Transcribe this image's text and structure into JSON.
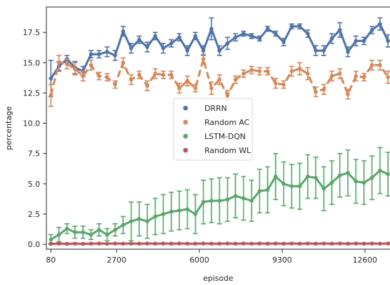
{
  "chart_data": {
    "type": "line",
    "xlabel": "episode",
    "ylabel": "percentage",
    "x_ticks": [
      80,
      2700,
      6000,
      9300,
      12600
    ],
    "y_ticks": [
      0.0,
      2.5,
      5.0,
      7.5,
      10.0,
      12.5,
      15.0,
      17.5
    ],
    "xlim": [
      -100,
      13600
    ],
    "ylim": [
      -0.4,
      19.6
    ],
    "grid": false,
    "legend_position": "center",
    "x": [
      80,
      400,
      720,
      1040,
      1360,
      1680,
      2000,
      2320,
      2640,
      2960,
      3280,
      3600,
      3920,
      4240,
      4560,
      4880,
      5200,
      5520,
      5840,
      6160,
      6480,
      6800,
      7120,
      7440,
      7760,
      8080,
      8400,
      8720,
      9040,
      9360,
      9680,
      10000,
      10320,
      10640,
      10960,
      11280,
      11600,
      11920,
      12240,
      12560,
      12880,
      13200,
      13520
    ],
    "series": [
      {
        "name": "DRRN",
        "color": "#4c72b0",
        "linestyle": "solid",
        "values": [
          13.7,
          14.7,
          15.3,
          14.6,
          14.3,
          15.7,
          15.7,
          15.9,
          15.6,
          17.6,
          16.2,
          16.9,
          16.3,
          17.2,
          16.2,
          16.6,
          17.1,
          16.0,
          17.2,
          16.0,
          17.8,
          16.0,
          16.6,
          17.1,
          17.4,
          17.2,
          17.0,
          17.8,
          17.4,
          16.7,
          18.0,
          18.0,
          17.4,
          16.0,
          16.0,
          17.0,
          17.7,
          15.9,
          16.8,
          16.8,
          17.7,
          18.2,
          16.8
        ],
        "err": [
          1.5,
          0.4,
          0.3,
          0.5,
          0.4,
          0.3,
          0.3,
          0.4,
          0.4,
          0.4,
          0.4,
          0.3,
          0.4,
          0.3,
          0.4,
          0.3,
          0.3,
          0.4,
          0.3,
          0.4,
          0.9,
          0.4,
          0.5,
          0.3,
          0.2,
          0.2,
          0.2,
          0.2,
          0.2,
          0.3,
          0.2,
          0.2,
          0.3,
          0.4,
          0.4,
          0.4,
          0.6,
          0.4,
          0.4,
          0.3,
          0.3,
          0.5,
          0.5
        ]
      },
      {
        "name": "Random AC",
        "color": "#dd8452",
        "linestyle": "dashed",
        "values": [
          12.3,
          15.0,
          14.9,
          14.5,
          13.9,
          14.8,
          13.9,
          13.8,
          13.2,
          15.0,
          13.6,
          14.0,
          13.1,
          14.1,
          14.0,
          14.0,
          12.9,
          13.5,
          12.9,
          15.3,
          12.9,
          13.6,
          12.3,
          13.6,
          14.1,
          14.4,
          14.3,
          14.3,
          13.3,
          13.2,
          14.3,
          14.5,
          14.1,
          12.6,
          12.8,
          13.9,
          14.1,
          12.4,
          13.9,
          13.8,
          14.8,
          14.8,
          13.8
        ],
        "err": [
          0.9,
          0.6,
          0.4,
          0.5,
          0.4,
          0.4,
          0.3,
          0.3,
          0.3,
          0.4,
          0.4,
          0.3,
          0.4,
          0.4,
          0.3,
          0.3,
          0.4,
          0.4,
          0.3,
          0.4,
          0.5,
          0.4,
          0.4,
          0.3,
          0.3,
          0.3,
          0.3,
          0.3,
          0.4,
          0.3,
          0.4,
          0.5,
          0.5,
          0.4,
          0.4,
          0.4,
          0.4,
          0.4,
          0.4,
          0.3,
          0.4,
          0.4,
          0.5
        ]
      },
      {
        "name": "LSTM-DQN",
        "color": "#55a868",
        "linestyle": "solid",
        "values": [
          0.4,
          0.8,
          1.3,
          1.0,
          1.0,
          0.8,
          1.2,
          0.8,
          1.2,
          1.6,
          1.9,
          2.1,
          1.9,
          2.3,
          2.5,
          2.7,
          2.8,
          2.9,
          2.5,
          3.5,
          3.6,
          3.6,
          3.7,
          4.0,
          3.8,
          3.6,
          4.4,
          4.5,
          5.6,
          5.0,
          4.8,
          4.8,
          5.6,
          5.5,
          4.6,
          5.1,
          5.7,
          5.9,
          5.2,
          5.1,
          5.5,
          6.1,
          5.8
        ],
        "err": [
          0.4,
          0.6,
          0.4,
          0.5,
          0.5,
          0.4,
          0.5,
          0.5,
          0.5,
          0.7,
          1.6,
          1.4,
          1.4,
          1.5,
          1.6,
          1.6,
          1.6,
          1.6,
          1.6,
          1.8,
          1.8,
          1.9,
          1.8,
          1.8,
          1.8,
          1.7,
          1.8,
          1.9,
          1.9,
          1.8,
          1.8,
          1.9,
          1.8,
          1.7,
          1.8,
          1.8,
          1.8,
          1.9,
          1.8,
          1.8,
          1.8,
          1.9,
          1.8
        ]
      },
      {
        "name": "Random WL",
        "color": "#c44e52",
        "linestyle": "solid",
        "values": [
          0.05,
          0.06,
          0.05,
          0.06,
          0.05,
          0.06,
          0.07,
          0.06,
          0.07,
          0.06,
          0.07,
          0.06,
          0.07,
          0.06,
          0.07,
          0.06,
          0.07,
          0.06,
          0.06,
          0.07,
          0.06,
          0.06,
          0.07,
          0.06,
          0.07,
          0.06,
          0.07,
          0.06,
          0.07,
          0.06,
          0.07,
          0.06,
          0.07,
          0.06,
          0.07,
          0.06,
          0.07,
          0.06,
          0.07,
          0.06,
          0.07,
          0.06,
          0.07
        ],
        "err": [
          0.04,
          0.04,
          0.04,
          0.04,
          0.04,
          0.04,
          0.04,
          0.04,
          0.04,
          0.04,
          0.04,
          0.04,
          0.04,
          0.04,
          0.04,
          0.04,
          0.04,
          0.04,
          0.04,
          0.04,
          0.04,
          0.04,
          0.04,
          0.04,
          0.04,
          0.04,
          0.04,
          0.04,
          0.04,
          0.04,
          0.04,
          0.04,
          0.04,
          0.04,
          0.04,
          0.04,
          0.04,
          0.04,
          0.04,
          0.04,
          0.04,
          0.04,
          0.04
        ]
      }
    ]
  },
  "legend": {
    "items": [
      {
        "label": "DRRN",
        "color": "#4c72b0"
      },
      {
        "label": "Random AC",
        "color": "#dd8452"
      },
      {
        "label": "LSTM-DQN",
        "color": "#55a868"
      },
      {
        "label": "Random WL",
        "color": "#c44e52"
      }
    ]
  },
  "axes": {
    "xlabel": "episode",
    "ylabel": "percentage",
    "x_tick_labels": [
      "80",
      "2700",
      "6000",
      "9300",
      "12600"
    ],
    "y_tick_labels": [
      "0.0",
      "2.5",
      "5.0",
      "7.5",
      "10.0",
      "12.5",
      "15.0",
      "17.5"
    ]
  }
}
